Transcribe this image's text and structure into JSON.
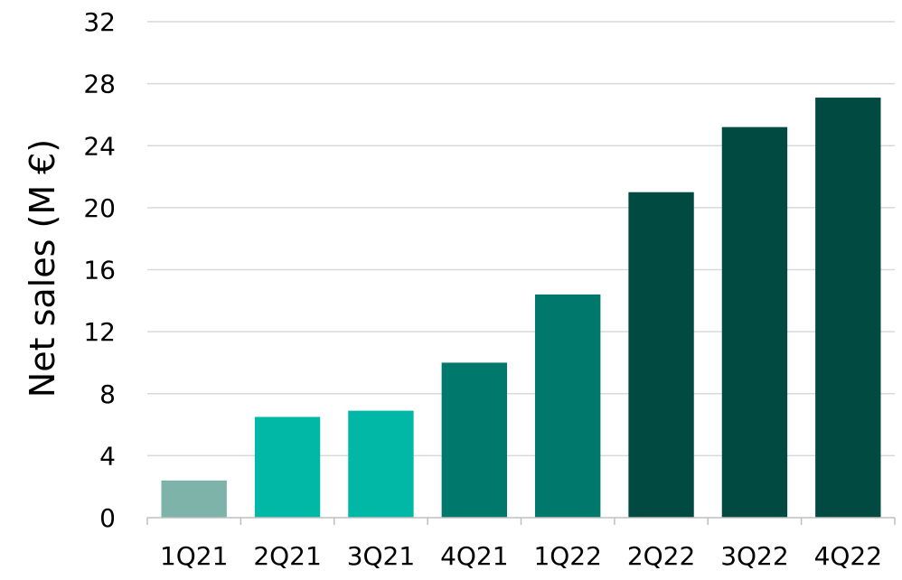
{
  "chart_data": {
    "type": "bar",
    "title": "",
    "xlabel": "",
    "ylabel": "Net sales (M €)",
    "ylim": [
      0,
      32
    ],
    "yticks": [
      0,
      4,
      8,
      12,
      16,
      20,
      24,
      28,
      32
    ],
    "grid": true,
    "categories": [
      "1Q21",
      "2Q21",
      "3Q21",
      "4Q21",
      "1Q22",
      "2Q22",
      "3Q22",
      "4Q22"
    ],
    "values": [
      2.4,
      6.5,
      6.9,
      10.0,
      14.4,
      21.0,
      25.2,
      27.1
    ],
    "bar_colors": [
      "#7db3a9",
      "#00b8a5",
      "#00b8a5",
      "#00786c",
      "#00786c",
      "#004a41",
      "#004a41",
      "#004a41"
    ]
  }
}
